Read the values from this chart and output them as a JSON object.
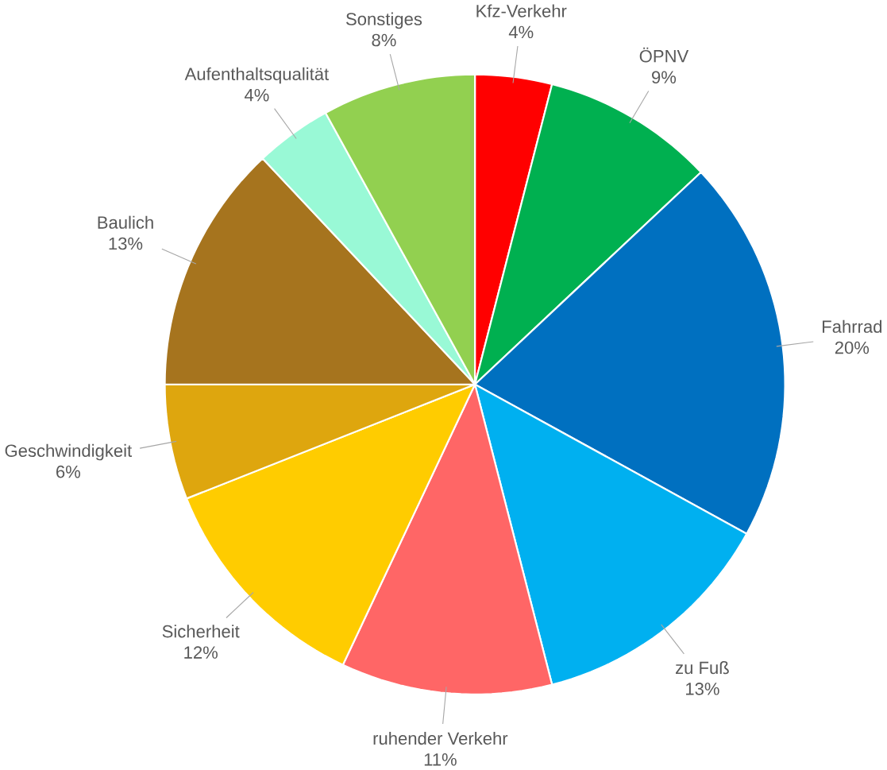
{
  "chart_data": {
    "type": "pie",
    "categories": [
      "Kfz-Verkehr",
      "ÖPNV",
      "Fahrrad",
      "zu Fuß",
      "ruhender Verkehr",
      "Sicherheit",
      "Geschwindigkeit",
      "Baulich",
      "Aufenthaltsqualität",
      "Sonstiges"
    ],
    "values": [
      4,
      9,
      20,
      13,
      11,
      12,
      6,
      13,
      4,
      8
    ],
    "colors": [
      "#ff0000",
      "#00b050",
      "#0070c0",
      "#00b0f0",
      "#ff6666",
      "#ffcc00",
      "#dea60e",
      "#a6741e",
      "#99f9d6",
      "#92d050"
    ],
    "value_labels": [
      "4%",
      "9%",
      "20%",
      "13%",
      "11%",
      "12%",
      "6%",
      "13%",
      "4%",
      "8%"
    ]
  }
}
